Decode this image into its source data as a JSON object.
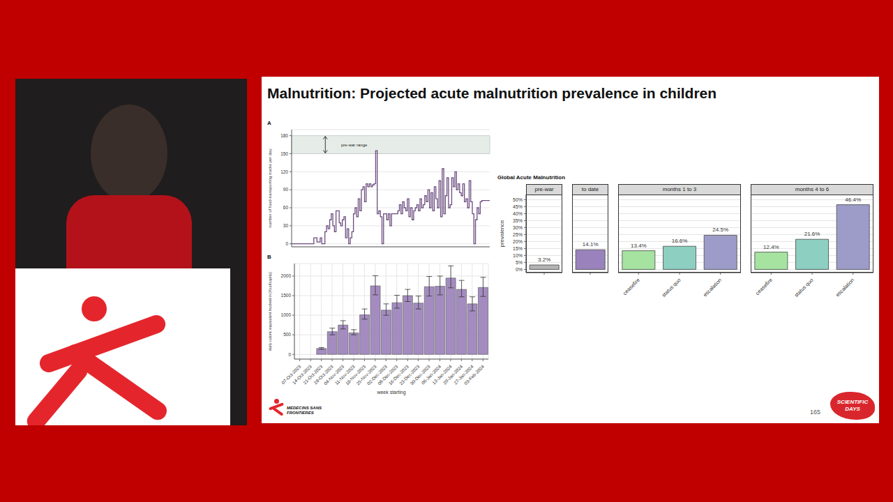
{
  "slide": {
    "title": "Malnutrition: Projected acute malnutrition prevalence in children",
    "page": "165",
    "logos": [
      "MEDECINS SANS FRONTIERES",
      "SCIENTIFIC DAYS"
    ]
  },
  "chart_data": [
    {
      "panel": "A",
      "type": "line",
      "line_style": "step",
      "color": "#6b4c7f",
      "ylabel": "number of food-transporting trucks per day",
      "tick_labels": "y",
      "grid": true,
      "ylim": [
        -5,
        190
      ],
      "yticks": [
        0,
        30,
        60,
        90,
        120,
        150,
        180
      ],
      "annotation": {
        "text": "pre-war range",
        "y": [
          150,
          180
        ]
      },
      "values": [
        0,
        0,
        0,
        0,
        0,
        0,
        0,
        0,
        0,
        0,
        0,
        0,
        0,
        0,
        10,
        10,
        3,
        3,
        10,
        0,
        0,
        20,
        30,
        25,
        40,
        50,
        30,
        20,
        55,
        55,
        35,
        30,
        40,
        45,
        10,
        25,
        0,
        10,
        20,
        50,
        60,
        45,
        75,
        55,
        90,
        95,
        70,
        100,
        95,
        100,
        95,
        98,
        100,
        155,
        50,
        55,
        45,
        0,
        50,
        50,
        40,
        50,
        30,
        50,
        50,
        50,
        50,
        55,
        65,
        50,
        70,
        60,
        55,
        75,
        45,
        60,
        40,
        55,
        60,
        65,
        55,
        75,
        60,
        65,
        80,
        70,
        90,
        60,
        85,
        55,
        95,
        75,
        60,
        105,
        45,
        125,
        50,
        80,
        110,
        60,
        65,
        110,
        95,
        120,
        90,
        100,
        85,
        80,
        100,
        70,
        75,
        60,
        105,
        70,
        50,
        0,
        40,
        60,
        50,
        70,
        72,
        72,
        72,
        72,
        72,
        72
      ]
    },
    {
      "panel": "B",
      "type": "bar",
      "color": "#a48cc0",
      "xlabel": "week starting",
      "ylabel": "daily caloric equivalent trucked in (Kcal/capita)",
      "grid": true,
      "ylim": [
        -120,
        2320
      ],
      "yticks": [
        0,
        500,
        1000,
        1500,
        2000
      ],
      "categories": [
        "07-Oct-2023",
        "14-Oct-2023",
        "21-Oct-2023",
        "28-Oct-2023",
        "04-Nov-2023",
        "11-Nov-2023",
        "18-Nov-2023",
        "25-Nov-2023",
        "02-Dec-2023",
        "09-Dec-2023",
        "16-Dec-2023",
        "23-Dec-2023",
        "30-Dec-2023",
        "06-Jan-2024",
        "13-Jan-2024",
        "20-Jan-2024",
        "27-Jan-2024",
        "03-Feb-2024"
      ],
      "values": [
        0,
        0,
        150,
        580,
        750,
        550,
        1010,
        1750,
        1130,
        1320,
        1500,
        1310,
        1730,
        1740,
        1950,
        1660,
        1290,
        1710
      ],
      "error_low": [
        0,
        0,
        130,
        500,
        650,
        500,
        900,
        1520,
        1000,
        1180,
        1350,
        1160,
        1490,
        1520,
        1700,
        1470,
        1110,
        1480
      ],
      "error_high": [
        0,
        0,
        175,
        670,
        860,
        630,
        1160,
        2010,
        1290,
        1510,
        1660,
        1490,
        1990,
        2000,
        2260,
        1890,
        1470,
        1970
      ]
    },
    {
      "type": "bar",
      "title": "Global Acute Malnutrition",
      "ylabel": "prevalence",
      "grid": true,
      "data_labels": true,
      "ylim": [
        -2.3,
        53.7
      ],
      "yticks": [
        {
          "value": 0,
          "label": "0%"
        },
        {
          "value": 5,
          "label": "5%"
        },
        {
          "value": 10,
          "label": "10%"
        },
        {
          "value": 15,
          "label": "15%"
        },
        {
          "value": 20,
          "label": "20%"
        },
        {
          "value": 25,
          "label": "25%"
        },
        {
          "value": 30,
          "label": "30%"
        },
        {
          "value": 35,
          "label": "35%"
        },
        {
          "value": 40,
          "label": "40%"
        },
        {
          "value": 45,
          "label": "45%"
        },
        {
          "value": 50,
          "label": "50%"
        }
      ],
      "facets": [
        {
          "title": "pre-war",
          "categories": [
            null
          ],
          "values": [
            3.2
          ],
          "value_labels": [
            "3.2%"
          ],
          "colors": [
            "#b3b3b3"
          ]
        },
        {
          "title": "to date",
          "categories": [
            null
          ],
          "values": [
            14.1
          ],
          "value_labels": [
            "14.1%"
          ],
          "colors": [
            "#9a83bc"
          ]
        },
        {
          "title": "months 1 to 3",
          "categories": [
            "ceasefire",
            "status quo",
            "escalation"
          ],
          "values": [
            13.4,
            16.6,
            24.5
          ],
          "value_labels": [
            "13.4%",
            "16.6%",
            "24.5%"
          ],
          "colors": [
            "#a6e3a1",
            "#8dcfc0",
            "#9d9cc9"
          ]
        },
        {
          "title": "months 4 to 6",
          "categories": [
            "ceasefire",
            "status quo",
            "escalation"
          ],
          "values": [
            12.4,
            21.6,
            46.4
          ],
          "value_labels": [
            "12.4%",
            "21.6%",
            "46.4%"
          ],
          "colors": [
            "#a6e3a1",
            "#8dcfc0",
            "#9d9cc9"
          ]
        }
      ]
    }
  ]
}
